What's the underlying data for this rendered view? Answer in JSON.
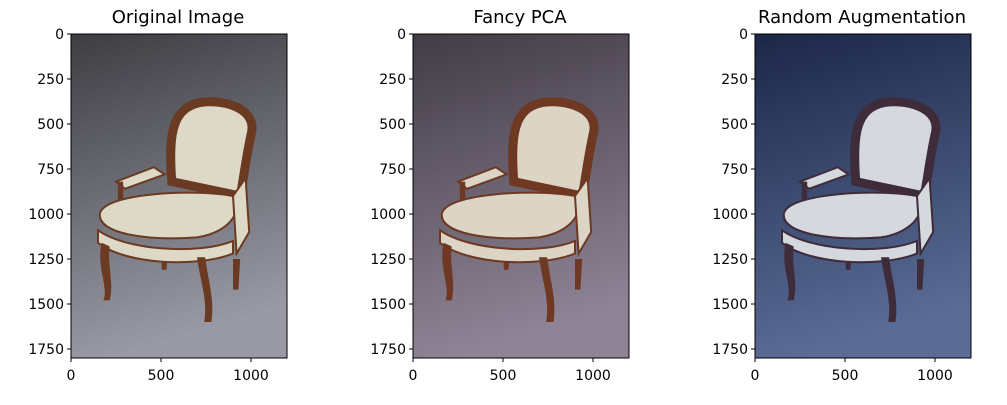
{
  "panels": [
    {
      "title": "Original Image",
      "bg_top": "#3d3d42",
      "bg_bottom": "#9a9aa6",
      "frame_color": "#6b3a22",
      "fabric_color": "#ddd9c6"
    },
    {
      "title": "Fancy PCA",
      "bg_top": "#423c46",
      "bg_bottom": "#8f8496",
      "frame_color": "#6e3822",
      "fabric_color": "#dcd4c4"
    },
    {
      "title": "Random Augmentation",
      "bg_top": "#1c2748",
      "bg_bottom": "#5a6c96",
      "frame_color": "#3e2c3a",
      "fabric_color": "#d5d8dc"
    }
  ],
  "axes": {
    "y_ticks": [
      0,
      250,
      500,
      750,
      1000,
      1250,
      1500,
      1750
    ],
    "x_ticks": [
      0,
      500,
      1000
    ],
    "x_max": 1200,
    "y_max": 1800
  }
}
